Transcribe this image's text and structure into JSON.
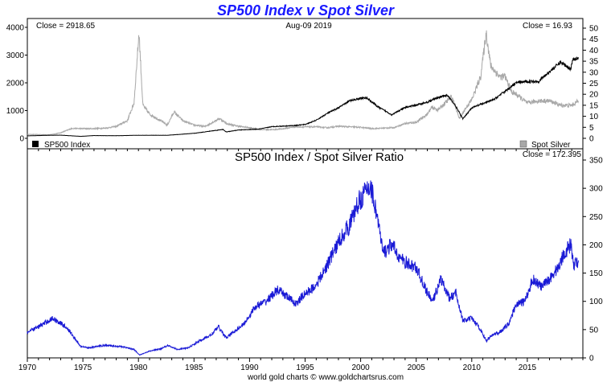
{
  "chart_data": [
    {
      "type": "line",
      "title": "SP500 Index v Spot Silver",
      "header": {
        "left": "Close = 2918.65",
        "center": "Aug-09  2019",
        "right": "Close = 16.93"
      },
      "legend": [
        {
          "name": "SP500 Index",
          "color": "#000000",
          "position": "bottom-left"
        },
        {
          "name": "Spot Silver",
          "color": "#a8a8a8",
          "position": "bottom-right"
        }
      ],
      "y_left": {
        "ylim": [
          0,
          4000
        ],
        "ticks": [
          0,
          1000,
          2000,
          3000,
          4000
        ]
      },
      "y_right": {
        "ylim": [
          0,
          50
        ],
        "ticks": [
          0,
          5,
          10,
          15,
          20,
          25,
          30,
          35,
          40,
          45,
          50
        ]
      },
      "series": [
        {
          "name": "SP500 Index",
          "axis": "left",
          "color": "#000000",
          "x": [
            1970,
            1972,
            1973,
            1974.8,
            1976,
            1978,
            1980,
            1982.6,
            1985,
            1987.6,
            1987.9,
            1989,
            1990.8,
            1992,
            1994,
            1995,
            1996,
            1997,
            1998,
            1999,
            2000,
            2000.6,
            2001.5,
            2002.8,
            2004,
            2005,
            2006,
            2007,
            2007.8,
            2008.5,
            2009.2,
            2010,
            2011,
            2012,
            2013,
            2014,
            2015,
            2016,
            2017,
            2018,
            2018.9,
            2019.1,
            2019.6
          ],
          "y": [
            90,
            110,
            115,
            70,
            100,
            95,
            110,
            110,
            180,
            320,
            230,
            300,
            330,
            420,
            460,
            500,
            650,
            900,
            1100,
            1350,
            1450,
            1450,
            1150,
            850,
            1110,
            1200,
            1300,
            1480,
            1550,
            1200,
            700,
            1100,
            1250,
            1400,
            1700,
            2000,
            2050,
            2050,
            2400,
            2750,
            2500,
            2850,
            2918.65
          ]
        },
        {
          "name": "Spot Silver",
          "axis": "right",
          "color": "#a8a8a8",
          "x": [
            1970,
            1972,
            1973,
            1974,
            1975,
            1976,
            1977,
            1978,
            1979,
            1979.6,
            1980.05,
            1980.4,
            1981,
            1982,
            1982.6,
            1983.2,
            1984,
            1985,
            1986,
            1987.3,
            1988,
            1989,
            1990,
            1991,
            1992,
            1993,
            1994,
            1995,
            1996,
            1997,
            1998,
            1999,
            2000,
            2001,
            2002,
            2003,
            2004,
            2005,
            2006,
            2006.4,
            2007,
            2008.2,
            2008.9,
            2009.5,
            2010,
            2010.8,
            2011.3,
            2011.7,
            2012,
            2012.5,
            2013,
            2013.6,
            2014,
            2015,
            2016,
            2017,
            2018,
            2019,
            2019.6
          ],
          "y": [
            1.8,
            1.6,
            2.5,
            4.5,
            4.4,
            4.4,
            4.6,
            5.4,
            8,
            16,
            48,
            15,
            11,
            8,
            6,
            12,
            8,
            6,
            5.4,
            9,
            6.5,
            5.5,
            4.8,
            4,
            3.9,
            4.3,
            5.2,
            5.2,
            5.2,
            4.8,
            5.5,
            5.2,
            5,
            4.4,
            4.6,
            4.9,
            6.7,
            7.3,
            11,
            14,
            13,
            19,
            9,
            14,
            17.5,
            28,
            48,
            33,
            31,
            28,
            28,
            21,
            20,
            16,
            17,
            17,
            15,
            15,
            16.93
          ]
        }
      ]
    },
    {
      "type": "line",
      "title": "SP500 Index  /  Spot Silver Ratio",
      "header": {
        "right": "Close = 172.395"
      },
      "xlabel": "",
      "x_ticks": [
        1970,
        1975,
        1980,
        1985,
        1990,
        1995,
        2000,
        2005,
        2010,
        2015
      ],
      "xlim": [
        1970,
        2020
      ],
      "y_right": {
        "ylim": [
          0,
          350
        ],
        "ticks": [
          0,
          50,
          100,
          150,
          200,
          250,
          300,
          350
        ]
      },
      "series": [
        {
          "name": "",
          "axis": "right",
          "color": "#1a1ad6",
          "x": [
            1970,
            1971,
            1972.3,
            1973.5,
            1974.8,
            1975.5,
            1977,
            1978.5,
            1979.6,
            1980.1,
            1981,
            1982,
            1982.6,
            1983.5,
            1984.5,
            1985.5,
            1986.5,
            1987.2,
            1987.9,
            1988.5,
            1989.5,
            1990.5,
            1991.5,
            1992.5,
            1993.3,
            1994.2,
            1994.8,
            1995.8,
            1996.5,
            1997.5,
            1998.3,
            1999,
            1999.8,
            2000.3,
            2000.9,
            2001.5,
            2002,
            2002.8,
            2003.6,
            2004.3,
            2005,
            2006,
            2006.5,
            2007.2,
            2008,
            2008.6,
            2009.2,
            2010,
            2010.8,
            2011.3,
            2011.8,
            2012.5,
            2013.3,
            2014,
            2014.8,
            2015.5,
            2016.3,
            2017,
            2017.8,
            2018.3,
            2018.9,
            2019.2,
            2019.6
          ],
          "y": [
            45,
            55,
            70,
            55,
            20,
            18,
            22,
            20,
            15,
            5,
            12,
            16,
            22,
            15,
            18,
            30,
            40,
            55,
            35,
            45,
            60,
            90,
            100,
            120,
            110,
            95,
            110,
            125,
            145,
            185,
            215,
            235,
            275,
            290,
            305,
            250,
            185,
            200,
            175,
            165,
            160,
            115,
            100,
            140,
            105,
            115,
            65,
            70,
            50,
            30,
            40,
            45,
            60,
            95,
            100,
            140,
            125,
            140,
            160,
            185,
            200,
            165,
            172.395
          ]
        }
      ]
    }
  ],
  "footer": "world gold charts © www.goldchartsrus.com"
}
